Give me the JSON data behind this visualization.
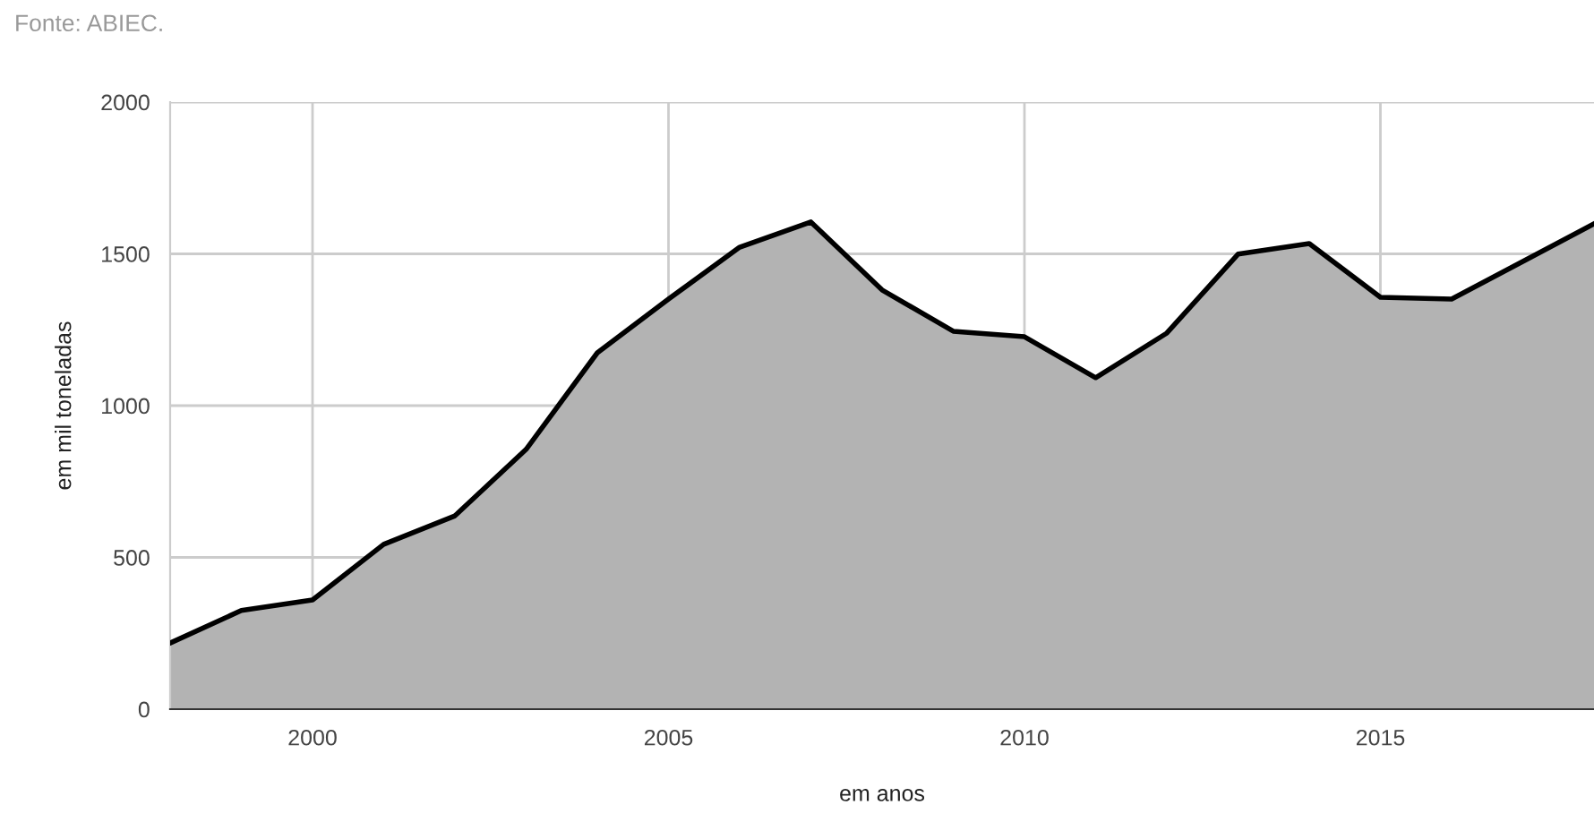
{
  "chart_data": {
    "type": "area",
    "x": [
      1998,
      1999,
      2000,
      2001,
      2002,
      2003,
      2004,
      2005,
      2006,
      2007,
      2008,
      2009,
      2010,
      2011,
      2012,
      2013,
      2014,
      2015,
      2016,
      2017,
      2018
    ],
    "series": [
      {
        "color": "#b3b3b3",
        "values": [
          218,
          325,
          360,
          543,
          637,
          856,
          1174,
          1351,
          1522,
          1605,
          1381,
          1245,
          1227,
          1092,
          1239,
          1499,
          1534,
          1357,
          1351,
          1475,
          1599
        ]
      }
    ],
    "xlim": [
      1998,
      2018
    ],
    "xticks": [
      2000,
      2005,
      2010,
      2015
    ],
    "ylim": [
      0,
      2000
    ],
    "yticks": [
      0,
      500,
      1000,
      1500,
      2000
    ],
    "xlabel": "em anos",
    "ylabel": "em mil toneladas",
    "annotations": [
      "Fonte: ABIEC."
    ],
    "grid": true,
    "legend": false
  }
}
